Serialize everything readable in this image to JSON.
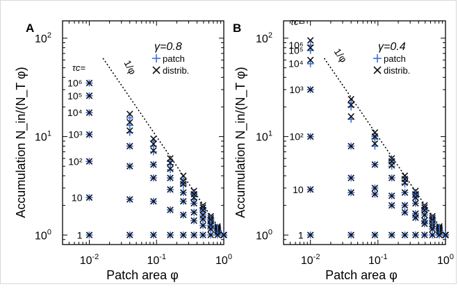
{
  "colors": {
    "patch": "#3a6fd8",
    "distrib": "#111111",
    "axis": "#000000",
    "line": "#000000"
  },
  "chart_data": [
    {
      "type": "scatter",
      "panel": "A",
      "xlabel": "Patch area φ",
      "ylabel": "Accumulation N_in/(N_T φ)",
      "x_scale": "log",
      "y_scale": "log",
      "xlim": [
        0.004,
        1
      ],
      "ylim": [
        0.8,
        150
      ],
      "x_ticks": [
        {
          "v": 0.01,
          "mant": "10",
          "exp": "-2"
        },
        {
          "v": 0.1,
          "mant": "10",
          "exp": "-1"
        },
        {
          "v": 1,
          "mant": "10",
          "exp": "0"
        }
      ],
      "y_ticks": [
        {
          "v": 1,
          "mant": "10",
          "exp": "0"
        },
        {
          "v": 10,
          "mant": "10",
          "exp": "1"
        },
        {
          "v": 100,
          "mant": "10",
          "exp": "2"
        }
      ],
      "gamma_label": "γ=0.8",
      "tau_label": "τc=",
      "reference_line": {
        "label": "1/φ",
        "x": [
          0.016,
          1
        ],
        "y": [
          62.5,
          1
        ]
      },
      "legend": [
        "patch",
        "distrib."
      ],
      "tau_values": [
        "10⁶",
        "10⁵",
        "10⁴",
        "10³",
        "10²",
        "10",
        "1"
      ],
      "x": [
        0.01,
        0.04,
        0.09,
        0.16,
        0.25,
        0.36,
        0.49,
        0.64,
        0.81,
        1.0
      ],
      "series": [
        {
          "name": "patch",
          "groups": [
            {
              "tau": "10⁶",
              "values": [
                35,
                15.5,
                9.0,
                5.6,
                3.7,
                2.7,
                1.9,
                1.5,
                1.2,
                1.0
              ]
            },
            {
              "tau": "10⁵",
              "values": [
                26,
                13,
                8.0,
                5.2,
                3.4,
                2.6,
                1.85,
                1.45,
                1.17,
                1.0
              ]
            },
            {
              "tau": "10⁴",
              "values": [
                17.5,
                11,
                7.0,
                4.6,
                3.2,
                2.3,
                1.75,
                1.4,
                1.15,
                1.0
              ]
            },
            {
              "tau": "10³",
              "values": [
                10.5,
                8.0,
                5.2,
                3.8,
                2.7,
                2.1,
                1.6,
                1.3,
                1.12,
                1.0
              ]
            },
            {
              "tau": "10²",
              "values": [
                5.6,
                5.0,
                3.8,
                2.9,
                2.2,
                1.7,
                1.45,
                1.25,
                1.1,
                1.0
              ]
            },
            {
              "tau": "10",
              "values": [
                2.4,
                2.3,
                2.2,
                1.8,
                1.6,
                1.4,
                1.25,
                1.15,
                1.06,
                1.0
              ]
            },
            {
              "tau": "1",
              "values": [
                1.0,
                1.0,
                1.0,
                1.0,
                1.0,
                1.0,
                1.0,
                1.0,
                1.0,
                1.0
              ]
            }
          ]
        },
        {
          "name": "distrib.",
          "groups": [
            {
              "tau": "10⁶",
              "values": [
                35,
                17,
                9.5,
                6.0,
                4.0,
                2.8,
                2.0,
                1.55,
                1.22,
                1.0
              ]
            },
            {
              "tau": "10⁵",
              "values": [
                26,
                14,
                8.4,
                5.4,
                3.5,
                2.6,
                1.9,
                1.48,
                1.18,
                1.0
              ]
            },
            {
              "tau": "10⁴",
              "values": [
                17.5,
                11.5,
                7.2,
                4.7,
                3.3,
                2.4,
                1.78,
                1.42,
                1.16,
                1.0
              ]
            },
            {
              "tau": "10³",
              "values": [
                10.5,
                8.0,
                5.2,
                3.8,
                2.7,
                2.1,
                1.6,
                1.3,
                1.12,
                1.0
              ]
            },
            {
              "tau": "10²",
              "values": [
                5.6,
                5.0,
                3.8,
                2.9,
                2.2,
                1.7,
                1.45,
                1.25,
                1.1,
                1.0
              ]
            },
            {
              "tau": "10",
              "values": [
                2.4,
                2.3,
                2.2,
                1.8,
                1.6,
                1.4,
                1.25,
                1.15,
                1.06,
                1.0
              ]
            },
            {
              "tau": "1",
              "values": [
                1.0,
                1.0,
                1.0,
                1.0,
                1.0,
                1.0,
                1.0,
                1.0,
                1.0,
                1.0
              ]
            }
          ]
        }
      ]
    },
    {
      "type": "scatter",
      "panel": "B",
      "xlabel": "Patch area φ",
      "ylabel": "Accumulation N_in/(N_T φ)",
      "x_scale": "log",
      "y_scale": "log",
      "xlim": [
        0.004,
        1
      ],
      "ylim": [
        0.8,
        150
      ],
      "x_ticks": [
        {
          "v": 0.01,
          "mant": "10",
          "exp": "-2"
        },
        {
          "v": 0.1,
          "mant": "10",
          "exp": "-1"
        },
        {
          "v": 1,
          "mant": "10",
          "exp": "0"
        }
      ],
      "y_ticks": [
        {
          "v": 1,
          "mant": "10",
          "exp": "0"
        },
        {
          "v": 10,
          "mant": "10",
          "exp": "1"
        },
        {
          "v": 100,
          "mant": "10",
          "exp": "2"
        }
      ],
      "gamma_label": "γ=0.4",
      "tau_label": "τc=",
      "reference_line": {
        "label": "1/φ",
        "x": [
          0.016,
          1
        ],
        "y": [
          62.5,
          1
        ]
      },
      "legend": [
        "patch",
        "distrib."
      ],
      "tau_values": [
        "10⁶",
        "10⁵",
        "10⁴",
        "10³",
        "10²",
        "10",
        "1"
      ],
      "x": [
        0.01,
        0.04,
        0.09,
        0.16,
        0.25,
        0.36,
        0.49,
        0.64,
        0.81,
        1.0
      ],
      "series": [
        {
          "name": "patch",
          "groups": [
            {
              "tau": "10⁶",
              "values": [
                85,
                22,
                10,
                5.8,
                3.8,
                2.7,
                1.9,
                1.5,
                1.2,
                1.0
              ]
            },
            {
              "tau": "10⁵",
              "values": [
                75,
                20,
                9.5,
                5.5,
                3.6,
                2.6,
                1.85,
                1.45,
                1.18,
                1.0
              ]
            },
            {
              "tau": "10⁴",
              "values": [
                55,
                15,
                8.0,
                5.0,
                3.3,
                2.4,
                1.75,
                1.4,
                1.15,
                1.0
              ]
            },
            {
              "tau": "10³",
              "values": [
                30,
                8.0,
                5.2,
                3.8,
                2.7,
                2.1,
                1.6,
                1.3,
                1.12,
                1.0
              ]
            },
            {
              "tau": "10²",
              "values": [
                10,
                3.8,
                3.0,
                2.5,
                2.0,
                1.65,
                1.4,
                1.22,
                1.1,
                1.0
              ]
            },
            {
              "tau": "10",
              "values": [
                2.9,
                2.7,
                2.6,
                2.0,
                1.7,
                1.5,
                1.3,
                1.15,
                1.06,
                1.0
              ]
            },
            {
              "tau": "1",
              "values": [
                1.0,
                1.0,
                1.0,
                1.0,
                1.0,
                1.0,
                1.0,
                1.0,
                1.0,
                1.0
              ]
            }
          ]
        },
        {
          "name": "distrib.",
          "groups": [
            {
              "tau": "10⁶",
              "values": [
                95,
                24,
                11,
                6.0,
                4.0,
                2.8,
                2.0,
                1.55,
                1.22,
                1.0
              ]
            },
            {
              "tau": "10⁵",
              "values": [
                80,
                21,
                10,
                5.6,
                3.7,
                2.6,
                1.9,
                1.48,
                1.18,
                1.0
              ]
            },
            {
              "tau": "10⁴",
              "values": [
                60,
                16,
                8.5,
                5.1,
                3.4,
                2.4,
                1.78,
                1.42,
                1.16,
                1.0
              ]
            },
            {
              "tau": "10³",
              "values": [
                30,
                8.0,
                5.2,
                3.8,
                2.7,
                2.1,
                1.6,
                1.3,
                1.12,
                1.0
              ]
            },
            {
              "tau": "10²",
              "values": [
                10,
                3.8,
                3.0,
                2.5,
                2.0,
                1.65,
                1.4,
                1.22,
                1.1,
                1.0
              ]
            },
            {
              "tau": "10",
              "values": [
                2.9,
                2.7,
                2.6,
                2.0,
                1.7,
                1.5,
                1.3,
                1.15,
                1.06,
                1.0
              ]
            },
            {
              "tau": "1",
              "values": [
                1.0,
                1.0,
                1.0,
                1.0,
                1.0,
                1.0,
                1.0,
                1.0,
                1.0,
                1.0
              ]
            }
          ]
        }
      ]
    }
  ]
}
